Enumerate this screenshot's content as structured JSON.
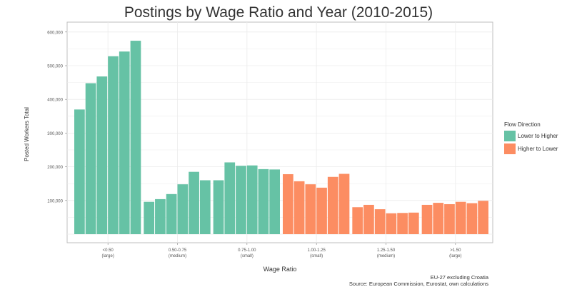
{
  "colors": {
    "lower_to_higher": "#66c2a5",
    "higher_to_lower": "#fc8d62",
    "grid": "#ebebeb",
    "panel_border": "#bfbfbf"
  },
  "legend": {
    "title": "Flow Direction",
    "items": [
      {
        "label": "Lower to Higher",
        "color": "#66c2a5"
      },
      {
        "label": "Higher to Lower",
        "color": "#fc8d62"
      }
    ]
  },
  "source_note": {
    "line1": "EU-27 excluding Croatia",
    "line2": "Source: European Commission, Eurostat, own calculations"
  },
  "chart_data": {
    "type": "bar",
    "title": "Postings by Wage Ratio and Year (2010-2015)",
    "xlabel": "Wage Ratio",
    "ylabel": "Posted Workers Total",
    "ylim": [
      0,
      600000
    ],
    "yticks": [
      100000,
      200000,
      300000,
      400000,
      500000,
      600000
    ],
    "ytick_labels": [
      "100,000",
      "200,000",
      "300,000",
      "400,000",
      "500,000",
      "600,000"
    ],
    "grid": true,
    "legend_position": "right",
    "groups": [
      {
        "label_line1": "<0.50",
        "label_line2": "(large)",
        "direction": "Lower to Higher",
        "values": [
          370000,
          448000,
          468000,
          528000,
          542000,
          574000
        ]
      },
      {
        "label_line1": "0.50-0.75",
        "label_line2": "(medium)",
        "direction": "Lower to Higher",
        "values": [
          96000,
          104000,
          119000,
          148000,
          185000,
          160000
        ]
      },
      {
        "label_line1": "0.75-1.00",
        "label_line2": "(small)",
        "direction": "Lower to Higher",
        "values": [
          160000,
          213000,
          203000,
          204000,
          193000,
          192000
        ]
      },
      {
        "label_line1": "1.00-1.25",
        "label_line2": "(small)",
        "direction": "Higher to Lower",
        "values": [
          178000,
          157000,
          148000,
          138000,
          170000,
          179000
        ]
      },
      {
        "label_line1": "1.25-1.50",
        "label_line2": "(medium)",
        "direction": "Higher to Lower",
        "values": [
          80000,
          87000,
          74000,
          62000,
          63000,
          64000
        ]
      },
      {
        "label_line1": ">1.50",
        "label_line2": "(large)",
        "direction": "Higher to Lower",
        "values": [
          87000,
          93000,
          89000,
          96000,
          92000,
          99000
        ]
      }
    ]
  }
}
